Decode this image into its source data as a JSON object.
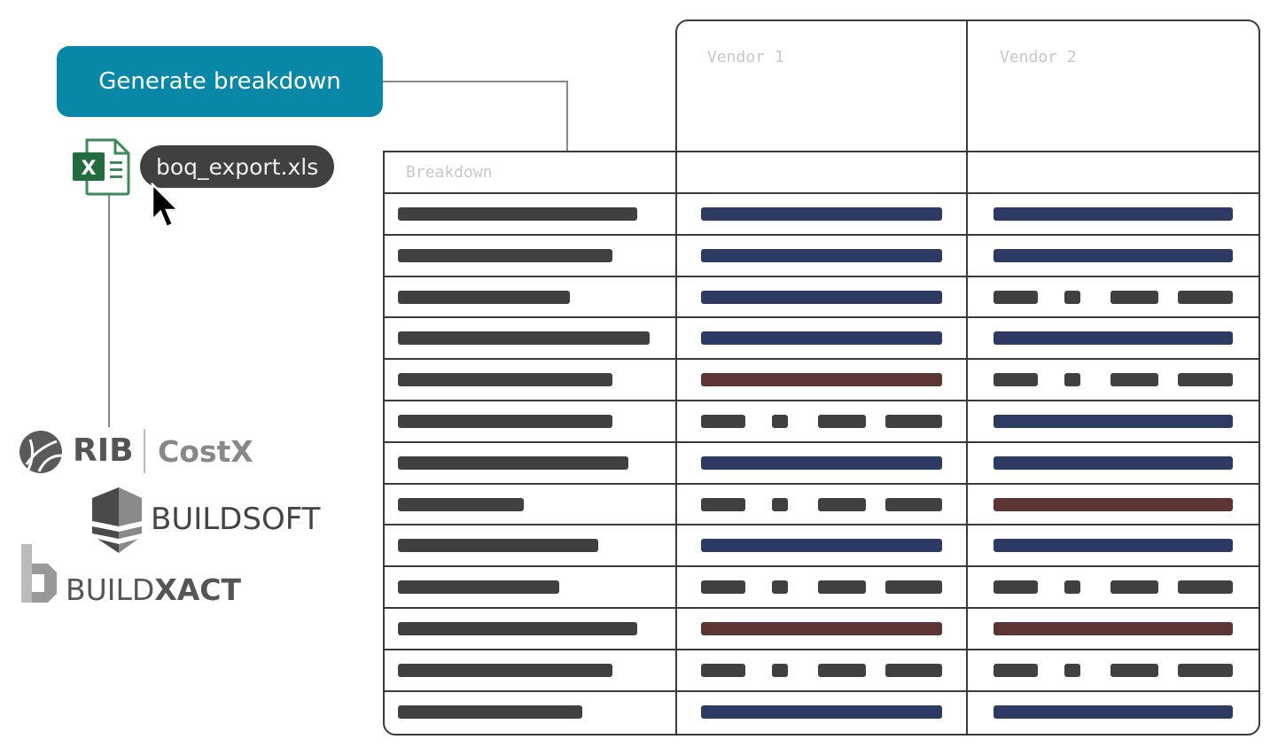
{
  "button": {
    "label": "Generate breakdown"
  },
  "file": {
    "name": "boq_export.xls",
    "icon": "excel-file-icon"
  },
  "table": {
    "header_breakdown": "Breakdown",
    "vendors": [
      "Vendor 1",
      "Vendor 2"
    ],
    "rows": [
      {
        "v1": "value",
        "v2": "value"
      },
      {
        "v1": "value",
        "v2": "value"
      },
      {
        "v1": "value",
        "v2": "missing"
      },
      {
        "v1": "value",
        "v2": "value"
      },
      {
        "v1": "flagged",
        "v2": "missing"
      },
      {
        "v1": "missing",
        "v2": "value"
      },
      {
        "v1": "value",
        "v2": "value"
      },
      {
        "v1": "missing",
        "v2": "flagged"
      },
      {
        "v1": "value",
        "v2": "value"
      },
      {
        "v1": "missing",
        "v2": "missing"
      },
      {
        "v1": "flagged",
        "v2": "flagged"
      },
      {
        "v1": "missing",
        "v2": "missing"
      },
      {
        "v1": "value",
        "v2": "value"
      }
    ]
  },
  "colors": {
    "accent": "#0887a6",
    "value": "#2c3a64",
    "flagged": "#5e3535",
    "placeholder": "#404040"
  },
  "logos": {
    "rib": "RIB",
    "costx": "CostX",
    "buildsoft": "BUILDSOFT",
    "buildxact_a": "BUILD",
    "buildxact_b": "XACT"
  }
}
